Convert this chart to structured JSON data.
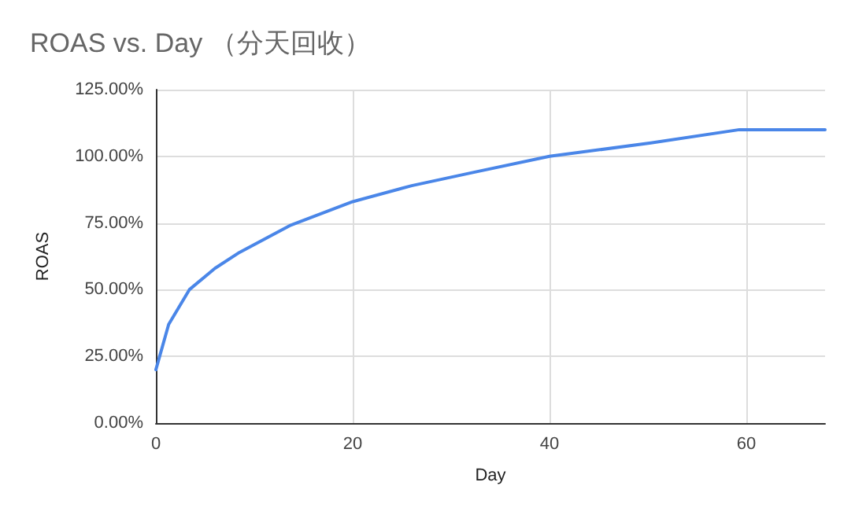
{
  "chart_data": {
    "type": "line",
    "title": "ROAS vs. Day （分天回收）",
    "xlabel": "Day",
    "ylabel": "ROAS",
    "x": [
      0,
      1.3,
      3.4,
      6,
      8.5,
      13.6,
      20,
      26,
      32.3,
      40,
      50.3,
      59.3,
      68
    ],
    "series": [
      {
        "color": "#4a86e8",
        "values": [
          20,
          37,
          50,
          58,
          64,
          74,
          83,
          89,
          94,
          100,
          105,
          110,
          110
        ]
      }
    ],
    "xlim": [
      0,
      68
    ],
    "xticks": [
      0,
      20,
      40,
      60
    ],
    "ylim": [
      0,
      125
    ],
    "yticks": [
      {
        "value": 0,
        "label": "0.00%"
      },
      {
        "value": 25,
        "label": "25.00%"
      },
      {
        "value": 50,
        "label": "50.00%"
      },
      {
        "value": 75,
        "label": "75.00%"
      },
      {
        "value": 100,
        "label": "100.00%"
      },
      {
        "value": 125,
        "label": "125.00%"
      }
    ],
    "grid": true,
    "marker": "none",
    "line_style": "solid"
  }
}
